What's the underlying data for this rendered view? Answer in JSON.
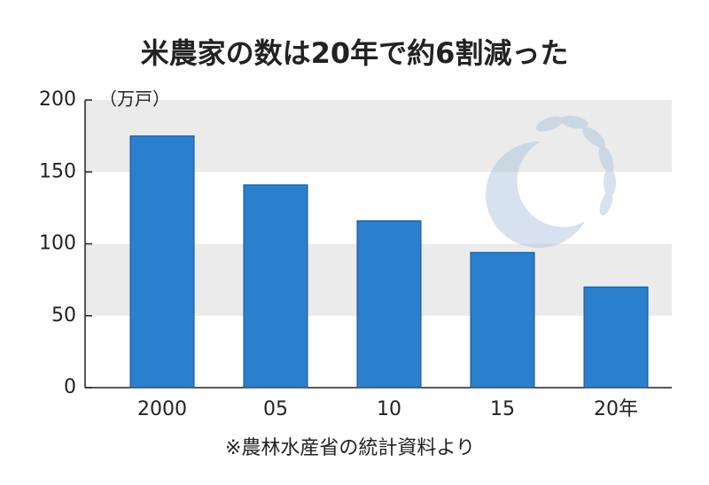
{
  "chart_data": {
    "type": "bar",
    "title": "米農家の数は20年で約6割減った",
    "unit_label": "（万戸）",
    "source": "※農林水産省の統計資料より",
    "categories": [
      "2000",
      "05",
      "10",
      "15",
      "20年"
    ],
    "values": [
      175,
      141,
      116,
      94,
      70
    ],
    "color": "#2b7fcf",
    "ylim": [
      0,
      200
    ],
    "yticks": [
      0,
      50,
      100,
      150,
      200
    ],
    "grid": "bands"
  }
}
